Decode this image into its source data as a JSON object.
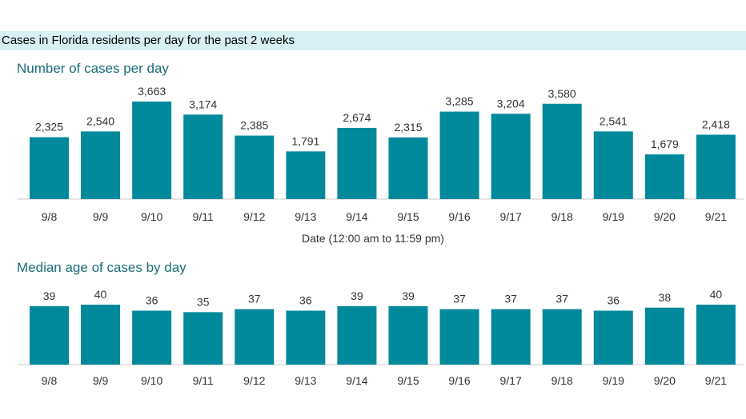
{
  "header": {
    "title": "Cases in Florida residents per day for the past 2 weeks"
  },
  "colors": {
    "bar": "#00899b",
    "header_band": "#d7f0f4",
    "panel_title": "#1a6d78"
  },
  "chart_data": [
    {
      "type": "bar",
      "title": "Number of cases per day",
      "xlabel": "Date (12:00 am to 11:59 pm)",
      "ylabel": "",
      "categories": [
        "9/8",
        "9/9",
        "9/10",
        "9/11",
        "9/12",
        "9/13",
        "9/14",
        "9/15",
        "9/16",
        "9/17",
        "9/18",
        "9/19",
        "9/20",
        "9/21"
      ],
      "values": [
        2325,
        2540,
        3663,
        3174,
        2385,
        1791,
        2674,
        2315,
        3285,
        3204,
        3580,
        2541,
        1679,
        2418
      ],
      "labels": [
        "2,325",
        "2,540",
        "3,663",
        "3,174",
        "2,385",
        "1,791",
        "2,674",
        "2,315",
        "3,285",
        "3,204",
        "3,580",
        "2,541",
        "1,679",
        "2,418"
      ],
      "ylim": [
        0,
        3663
      ],
      "grid": false,
      "legend": "none"
    },
    {
      "type": "bar",
      "title": "Median age of cases by day",
      "xlabel": "",
      "ylabel": "",
      "categories": [
        "9/8",
        "9/9",
        "9/10",
        "9/11",
        "9/12",
        "9/13",
        "9/14",
        "9/15",
        "9/16",
        "9/17",
        "9/18",
        "9/19",
        "9/20",
        "9/21"
      ],
      "values": [
        39,
        40,
        36,
        35,
        37,
        36,
        39,
        39,
        37,
        37,
        37,
        36,
        38,
        40
      ],
      "labels": [
        "39",
        "40",
        "36",
        "35",
        "37",
        "36",
        "39",
        "39",
        "37",
        "37",
        "37",
        "36",
        "38",
        "40"
      ],
      "ylim": [
        0,
        40
      ],
      "grid": false,
      "legend": "none"
    }
  ]
}
